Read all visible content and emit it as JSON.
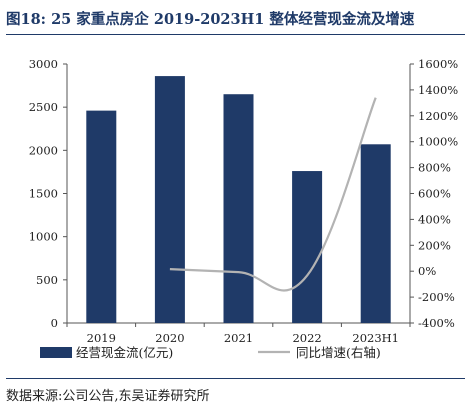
{
  "title": "图18:  25 家重点房企 2019-2023H1 整体经营现金流及增速",
  "source": "数据来源:公司公告,东吴证券研究所",
  "colors": {
    "bar": "#1f3a68",
    "line": "#b3b3b3",
    "text": "#1f3a68"
  },
  "chart_data": {
    "type": "bar+line",
    "categories": [
      "2019",
      "2020",
      "2021",
      "2022",
      "2023H1"
    ],
    "series": [
      {
        "name": "经营现金流(亿元)",
        "type": "bar",
        "axis": "left",
        "values": [
          2460,
          2860,
          2650,
          1760,
          2070
        ]
      },
      {
        "name": "同比增速(右轴)",
        "type": "line",
        "axis": "right",
        "values": [
          null,
          16,
          -7,
          -34,
          1340
        ]
      }
    ],
    "y_left": {
      "min": 0,
      "max": 3000,
      "ticks": [
        "0",
        "500",
        "1000",
        "1500",
        "2000",
        "2500",
        "3000"
      ]
    },
    "y_right": {
      "min": -400,
      "max": 1600,
      "ticks": [
        "-400%",
        "-200%",
        "0%",
        "200%",
        "400%",
        "600%",
        "800%",
        "1000%",
        "1200%",
        "1400%",
        "1600%"
      ]
    },
    "legend_position": "bottom",
    "grid": false
  }
}
